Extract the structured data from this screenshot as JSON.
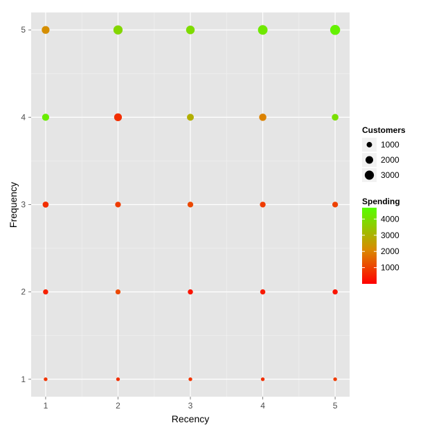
{
  "chart_data": {
    "type": "scatter",
    "title": "",
    "xlabel": "Recency",
    "ylabel": "Frequency",
    "x_ticks": [
      1,
      2,
      3,
      4,
      5
    ],
    "y_ticks": [
      1,
      2,
      3,
      4,
      5
    ],
    "xlim": [
      0.8,
      5.2
    ],
    "ylim": [
      0.8,
      5.2
    ],
    "grid": true,
    "size_legend": {
      "title": "Customers",
      "entries": [
        1000,
        2000,
        3000
      ],
      "labels": [
        "1000",
        "2000",
        "3000"
      ]
    },
    "color_legend": {
      "title": "Spending",
      "min": 0,
      "max": 4700,
      "ticks": [
        1000,
        2000,
        3000,
        4000
      ],
      "labels": [
        "1000",
        "2000",
        "3000",
        "4000"
      ],
      "low_color": "#ff0000",
      "high_color": "#55ff00"
    },
    "points": [
      {
        "recency": 1,
        "frequency": 5,
        "customers": 2100,
        "spending": 2200
      },
      {
        "recency": 2,
        "frequency": 5,
        "customers": 3000,
        "spending": 3800
      },
      {
        "recency": 3,
        "frequency": 5,
        "customers": 2600,
        "spending": 3900
      },
      {
        "recency": 4,
        "frequency": 5,
        "customers": 3300,
        "spending": 4200
      },
      {
        "recency": 5,
        "frequency": 5,
        "customers": 3600,
        "spending": 4400
      },
      {
        "recency": 1,
        "frequency": 4,
        "customers": 1700,
        "spending": 4300
      },
      {
        "recency": 2,
        "frequency": 4,
        "customers": 2100,
        "spending": 700
      },
      {
        "recency": 3,
        "frequency": 4,
        "customers": 1600,
        "spending": 2900
      },
      {
        "recency": 4,
        "frequency": 4,
        "customers": 1800,
        "spending": 2000
      },
      {
        "recency": 5,
        "frequency": 4,
        "customers": 1500,
        "spending": 4000
      },
      {
        "recency": 1,
        "frequency": 3,
        "customers": 1200,
        "spending": 700
      },
      {
        "recency": 2,
        "frequency": 3,
        "customers": 1100,
        "spending": 900
      },
      {
        "recency": 3,
        "frequency": 3,
        "customers": 1100,
        "spending": 1100
      },
      {
        "recency": 4,
        "frequency": 3,
        "customers": 1100,
        "spending": 900
      },
      {
        "recency": 5,
        "frequency": 3,
        "customers": 1100,
        "spending": 1000
      },
      {
        "recency": 1,
        "frequency": 2,
        "customers": 900,
        "spending": 500
      },
      {
        "recency": 2,
        "frequency": 2,
        "customers": 850,
        "spending": 1100
      },
      {
        "recency": 3,
        "frequency": 2,
        "customers": 900,
        "spending": 300
      },
      {
        "recency": 4,
        "frequency": 2,
        "customers": 900,
        "spending": 400
      },
      {
        "recency": 5,
        "frequency": 2,
        "customers": 900,
        "spending": 300
      },
      {
        "recency": 1,
        "frequency": 1,
        "customers": 500,
        "spending": 800
      },
      {
        "recency": 2,
        "frequency": 1,
        "customers": 500,
        "spending": 700
      },
      {
        "recency": 3,
        "frequency": 1,
        "customers": 500,
        "spending": 800
      },
      {
        "recency": 4,
        "frequency": 1,
        "customers": 500,
        "spending": 700
      },
      {
        "recency": 5,
        "frequency": 1,
        "customers": 500,
        "spending": 900
      }
    ]
  }
}
